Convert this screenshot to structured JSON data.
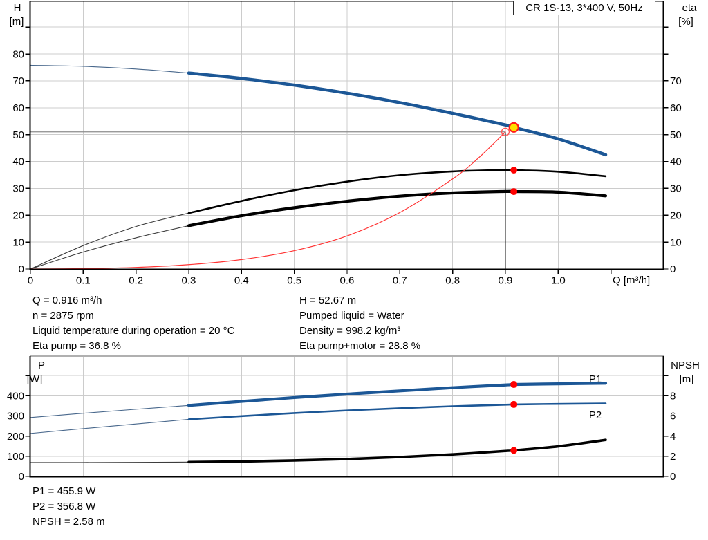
{
  "title_box": {
    "label": "CR 1S-13, 3*400 V, 50Hz"
  },
  "axes": {
    "top": {
      "h_label": "H",
      "h_unit": "[m]",
      "eta_label": "eta",
      "eta_unit": "[%]",
      "q_label": "Q [m³/h]",
      "x_tick_values": [
        0,
        0.1,
        0.2,
        0.3,
        0.4,
        0.5,
        0.6,
        0.7,
        0.8,
        0.9,
        1.0
      ],
      "x_tick_labels": [
        "0",
        "0.1",
        "0.2",
        "0.3",
        "0.4",
        "0.5",
        "0.6",
        "0.7",
        "0.8",
        "0.9",
        "1.0"
      ],
      "x_tick_marks": [
        0,
        0.1,
        0.2,
        0.3,
        0.4,
        0.5,
        0.6,
        0.7,
        0.8,
        0.9,
        1.0,
        1.1
      ],
      "x_grid": [
        0.1,
        0.2,
        0.3,
        0.4,
        0.5,
        0.6,
        0.7,
        0.8,
        0.9,
        1.0,
        1.1
      ],
      "y_tick_labels_left": [
        0,
        10,
        20,
        30,
        40,
        50,
        60,
        70,
        80
      ],
      "y_tick_marks_left": [
        0,
        10,
        20,
        30,
        40,
        50,
        60,
        70,
        80,
        90
      ],
      "y_tick_labels_right": [
        0,
        10,
        20,
        30,
        40,
        50,
        60,
        70
      ],
      "y_tick_marks_right": [
        0,
        10,
        20,
        30,
        40,
        50,
        60,
        70,
        80,
        90
      ],
      "y_grid": [
        10,
        20,
        30,
        40,
        50,
        60,
        70,
        80,
        90
      ]
    },
    "bottom": {
      "p_label": "P",
      "p_unit": "[W]",
      "npsh_label": "NPSH",
      "npsh_unit": "[m]",
      "x_grid": [
        0.1,
        0.2,
        0.3,
        0.4,
        0.5,
        0.6,
        0.7,
        0.8,
        0.9,
        1.0,
        1.1
      ],
      "y_tick_labels_left": [
        0,
        100,
        200,
        300,
        400
      ],
      "y_tick_marks_left": [
        0,
        100,
        200,
        300,
        400,
        500
      ],
      "y_tick_labels_right": [
        0,
        2,
        4,
        6,
        8
      ],
      "y_tick_marks_right": [
        0,
        2,
        4,
        6,
        8,
        10
      ],
      "y_grid": [
        100,
        200,
        300,
        400,
        500
      ]
    }
  },
  "series_labels": {
    "p1": "P1",
    "p2": "P2"
  },
  "info": {
    "left": [
      "Q = 0.916 m³/h",
      "n = 2875 rpm",
      "Liquid temperature during operation = 20 °C",
      "Eta pump = 36.8 %"
    ],
    "right": [
      "H = 52.67 m",
      "Pumped liquid = Water",
      "Density = 998.2 kg/m³",
      "Eta pump+motor = 28.8 %"
    ],
    "bottom": [
      "P1 = 455.9 W",
      "P2 = 356.8 W",
      "NPSH = 2.58 m"
    ]
  },
  "colors": {
    "curve_blue": "#1c5796",
    "thin_blue": "#49688c",
    "curve_black": "#000000",
    "thin_black": "#3c3c3c",
    "system_red": "#ff3333",
    "marker_red": "#ff0000",
    "duty_yellow": "#ffdf00",
    "grid": "#cccccc",
    "crosshair_gray": "#8c8c8c",
    "border_gray": "#b0b0b0"
  },
  "chart_data": [
    {
      "type": "line",
      "title": "CR 1S-13, 3*400 V, 50Hz",
      "xlabel": "Q [m³/h]",
      "ylabel": "H [m]",
      "ylabel_right": "eta [%]",
      "xlim": [
        0,
        1.2
      ],
      "ylim": [
        0,
        97.5
      ],
      "ylim_right": [
        0,
        97.5
      ],
      "grid": true,
      "series": [
        {
          "name": "head",
          "axis": "left",
          "color": "#1c5796",
          "width": 4.5,
          "thin_until": 0.3,
          "points": [
            [
              0,
              75.8
            ],
            [
              0.1,
              75.4
            ],
            [
              0.2,
              74.4
            ],
            [
              0.3,
              72.9
            ],
            [
              0.4,
              70.9
            ],
            [
              0.5,
              68.4
            ],
            [
              0.6,
              65.4
            ],
            [
              0.7,
              61.9
            ],
            [
              0.8,
              57.9
            ],
            [
              0.9,
              53.6
            ],
            [
              0.916,
              52.67
            ],
            [
              1.0,
              48.4
            ],
            [
              1.09,
              42.5
            ]
          ]
        },
        {
          "name": "eta-pump",
          "axis": "left",
          "color": "#000000",
          "width": 2.6,
          "thin_until": 0.3,
          "points": [
            [
              0,
              0
            ],
            [
              0.1,
              8.7
            ],
            [
              0.2,
              15.8
            ],
            [
              0.3,
              20.8
            ],
            [
              0.4,
              25.3
            ],
            [
              0.5,
              29.3
            ],
            [
              0.6,
              32.5
            ],
            [
              0.7,
              34.9
            ],
            [
              0.8,
              36.3
            ],
            [
              0.9,
              36.85
            ],
            [
              0.916,
              36.8
            ],
            [
              1.0,
              36.2
            ],
            [
              1.09,
              34.5
            ]
          ]
        },
        {
          "name": "eta-pump-motor",
          "axis": "left",
          "color": "#000000",
          "width": 4.2,
          "thin_until": 0.3,
          "points": [
            [
              0,
              0
            ],
            [
              0.1,
              6.3
            ],
            [
              0.2,
              11.6
            ],
            [
              0.3,
              16.1
            ],
            [
              0.4,
              19.8
            ],
            [
              0.5,
              22.8
            ],
            [
              0.6,
              25.2
            ],
            [
              0.7,
              27.1
            ],
            [
              0.8,
              28.3
            ],
            [
              0.9,
              28.85
            ],
            [
              0.916,
              28.8
            ],
            [
              1.0,
              28.6
            ],
            [
              1.09,
              27.2
            ]
          ]
        },
        {
          "name": "system-curve",
          "axis": "left",
          "color": "#ff3333",
          "width": 1.2,
          "thin_until": null,
          "points": [
            [
              0,
              0
            ],
            [
              0.1,
              0.15
            ],
            [
              0.2,
              0.6
            ],
            [
              0.3,
              1.6
            ],
            [
              0.4,
              3.5
            ],
            [
              0.5,
              6.8
            ],
            [
              0.6,
              12.3
            ],
            [
              0.7,
              21
            ],
            [
              0.8,
              33.5
            ],
            [
              0.85,
              41.5
            ],
            [
              0.9,
              51
            ]
          ]
        }
      ],
      "crosshair": {
        "x": 0.9,
        "y": 51
      },
      "markers": [
        {
          "name": "requested-duty-point",
          "x": 0.9,
          "y": 51,
          "axis": "left",
          "style": "open-red-circle"
        },
        {
          "name": "duty-point",
          "x": 0.916,
          "y": 52.67,
          "axis": "left",
          "style": "yellow-dot"
        },
        {
          "name": "eta-pump-point",
          "x": 0.916,
          "y": 36.8,
          "axis": "left",
          "style": "red-dot"
        },
        {
          "name": "eta-pump-motor-point",
          "x": 0.916,
          "y": 28.8,
          "axis": "left",
          "style": "red-dot"
        }
      ]
    },
    {
      "type": "line",
      "title": "",
      "xlabel": "",
      "ylabel": "P [W]",
      "ylabel_right": "NPSH [m]",
      "xlim": [
        0,
        1.2
      ],
      "ylim": [
        0,
        500
      ],
      "ylim_right": [
        0,
        10
      ],
      "grid": true,
      "series": [
        {
          "name": "p1",
          "label": "P1",
          "axis": "left",
          "color": "#1c5796",
          "width": 4.2,
          "thin_until": 0.3,
          "points": [
            [
              0,
              292
            ],
            [
              0.1,
              313
            ],
            [
              0.2,
              333
            ],
            [
              0.3,
              352
            ],
            [
              0.4,
              372
            ],
            [
              0.5,
              391
            ],
            [
              0.6,
              408
            ],
            [
              0.7,
              424
            ],
            [
              0.8,
              440
            ],
            [
              0.9,
              453.5
            ],
            [
              0.916,
              455.9
            ],
            [
              1.0,
              459
            ],
            [
              1.09,
              462
            ]
          ]
        },
        {
          "name": "p2",
          "label": "P2",
          "axis": "left",
          "color": "#1c5796",
          "width": 2.6,
          "thin_until": 0.3,
          "points": [
            [
              0,
              213
            ],
            [
              0.1,
              237
            ],
            [
              0.2,
              260
            ],
            [
              0.3,
              283
            ],
            [
              0.4,
              299
            ],
            [
              0.5,
              314
            ],
            [
              0.6,
              327
            ],
            [
              0.7,
              338
            ],
            [
              0.8,
              348
            ],
            [
              0.9,
              355.5
            ],
            [
              0.916,
              356.8
            ],
            [
              1.0,
              359.5
            ],
            [
              1.09,
              361.5
            ]
          ]
        },
        {
          "name": "npsh",
          "axis": "right",
          "color": "#000000",
          "width": 3.6,
          "thin_until": 0.3,
          "points": [
            [
              0,
              1.38
            ],
            [
              0.1,
              1.38
            ],
            [
              0.2,
              1.39
            ],
            [
              0.3,
              1.42
            ],
            [
              0.4,
              1.48
            ],
            [
              0.5,
              1.58
            ],
            [
              0.6,
              1.72
            ],
            [
              0.7,
              1.92
            ],
            [
              0.8,
              2.18
            ],
            [
              0.9,
              2.52
            ],
            [
              0.916,
              2.58
            ],
            [
              1.0,
              2.98
            ],
            [
              1.09,
              3.62
            ]
          ]
        }
      ],
      "markers": [
        {
          "name": "p1-point",
          "x": 0.916,
          "y": 455.9,
          "axis": "left",
          "style": "red-dot"
        },
        {
          "name": "p2-point",
          "x": 0.916,
          "y": 356.8,
          "axis": "left",
          "style": "red-dot"
        },
        {
          "name": "npsh-point",
          "x": 0.916,
          "y": 2.58,
          "axis": "right",
          "style": "red-dot"
        }
      ]
    }
  ]
}
